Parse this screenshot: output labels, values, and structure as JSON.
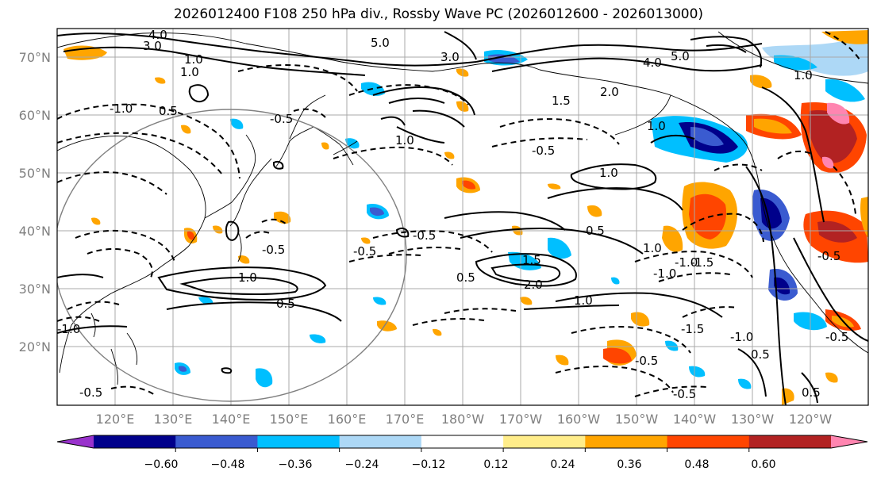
{
  "title": "2026012400 F108 250 hPa div., Rossby Wave PC (2026012600 - 2026013000)",
  "lat_labels": [
    "70°N",
    "60°N",
    "50°N",
    "40°N",
    "30°N",
    "20°N"
  ],
  "lon_labels": [
    "120°E",
    "130°E",
    "140°E",
    "150°E",
    "160°E",
    "170°E",
    "180°W",
    "170°W",
    "160°W",
    "150°W",
    "140°W",
    "130°W",
    "120°W"
  ],
  "colorbar": {
    "colors": [
      "#9932cc",
      "#00008b",
      "#3a5bd0",
      "#00bfff",
      "#add8f6",
      "#ffffff",
      "#ffed8a",
      "#ffa500",
      "#ff4500",
      "#b22222",
      "#ff85b0"
    ],
    "tick_labels": [
      "−0.60",
      "−0.48",
      "−0.36",
      "−0.24",
      "−0.12",
      "0.12",
      "0.24",
      "0.36",
      "0.48",
      "0.60"
    ]
  },
  "contour_labels": [
    "4.0",
    "3.0",
    "5.0",
    "3.0",
    "1.0",
    "1.0",
    "-1.0",
    "0.5",
    "-0.5",
    "1.0",
    "-0.5",
    "1.0",
    "-0.5",
    "0.5",
    "1.5",
    "2.0",
    "1.0",
    "0.5",
    "-0.5",
    "-1.0",
    "-1.5",
    "0.5",
    "-0.5",
    "-0.5",
    "-1.0",
    "-0.5",
    "4.0",
    "5.0",
    "1.5",
    "2.0",
    "1.0",
    "-1.0",
    "1.0",
    "-0.5",
    "1.0",
    "0.5",
    "1.0",
    "-1.0",
    "-1.5",
    "-0.5",
    "-0.5",
    "0.5"
  ]
}
